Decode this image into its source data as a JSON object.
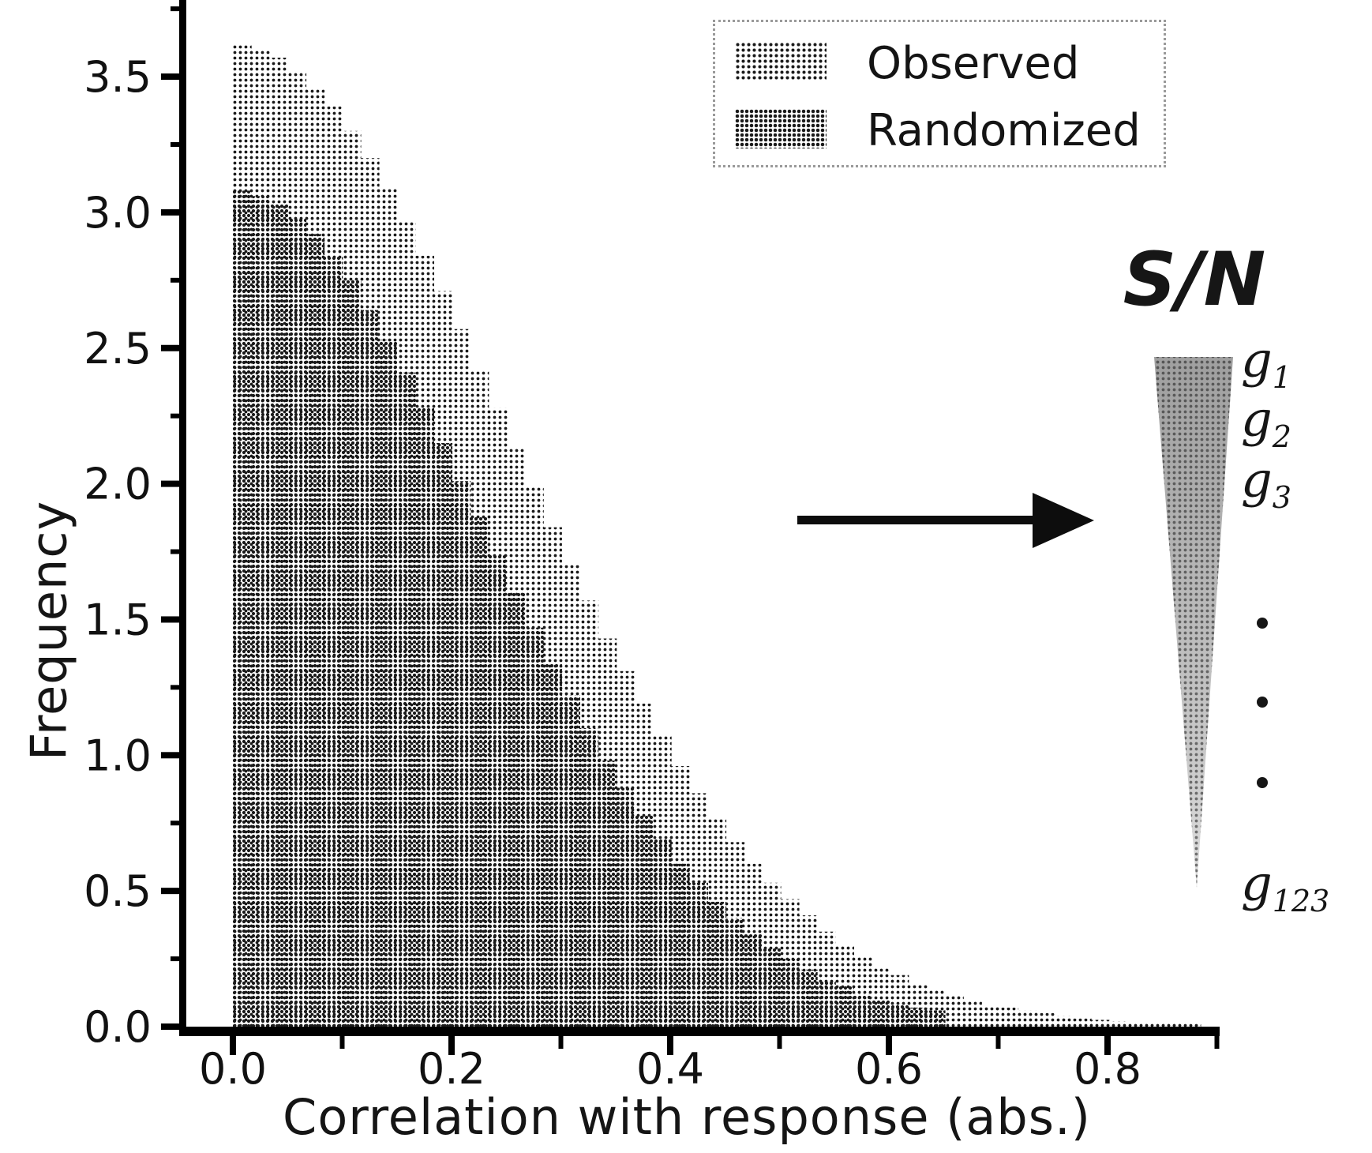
{
  "figure": {
    "background": "#ffffff",
    "description": "Histogram of gene correlations with response, observed vs randomized, with S/N-ranked gene list annotation"
  },
  "legend": {
    "items": [
      {
        "label": "Observed",
        "swatch": "halftone-light"
      },
      {
        "label": "Randomized",
        "swatch": "halftone-dense"
      }
    ]
  },
  "axes": {
    "x": {
      "title": "Correlation with response (abs.)",
      "tick_labels": [
        "0.0",
        "0.2",
        "0.4",
        "0.6",
        "0.8"
      ],
      "minor_ticks": [
        0.1,
        0.3,
        0.5,
        0.7,
        0.9
      ],
      "range": [
        -0.045,
        0.905
      ]
    },
    "y": {
      "title": "Frequency",
      "tick_labels": [
        "0.0",
        "0.5",
        "1.0",
        "1.5",
        "2.0",
        "2.5",
        "3.0",
        "3.5"
      ],
      "range": [
        0,
        3.79
      ]
    }
  },
  "annotation": {
    "sn_label": "S/N",
    "gene_labels": [
      {
        "base": "g",
        "sub": "1"
      },
      {
        "base": "g",
        "sub": "2"
      },
      {
        "base": "g",
        "sub": "3"
      },
      {
        "base": "g",
        "sub": "123"
      }
    ],
    "ellipsis_dots": 3,
    "arrow": "left-to-right"
  },
  "colors": {
    "ink": "#111111",
    "axis": "#000000",
    "halftone_dot": "#1a1a1a",
    "triangle_top": "#9f9f9f",
    "triangle_bottom": "#dedede"
  },
  "chart_data": {
    "type": "bar",
    "subtype": "histogram-overlaid",
    "title": "",
    "xlabel": "Correlation with response (abs.)",
    "ylabel": "Frequency",
    "xlim": [
      -0.045,
      0.905
    ],
    "ylim": [
      0,
      3.79
    ],
    "grid": false,
    "legend_position": "upper right",
    "bin_start": 0,
    "bin_width": 0.0167,
    "series": [
      {
        "name": "Observed",
        "pattern": "halftone-light",
        "values": [
          3.62,
          3.6,
          3.57,
          3.52,
          3.46,
          3.39,
          3.3,
          3.2,
          3.09,
          2.97,
          2.84,
          2.71,
          2.57,
          2.42,
          2.28,
          2.13,
          1.99,
          1.84,
          1.7,
          1.57,
          1.43,
          1.31,
          1.19,
          1.07,
          0.96,
          0.86,
          0.77,
          0.68,
          0.6,
          0.53,
          0.47,
          0.41,
          0.35,
          0.3,
          0.26,
          0.22,
          0.19,
          0.16,
          0.14,
          0.12,
          0.1,
          0.08,
          0.07,
          0.06,
          0.05,
          0.04,
          0.03,
          0.025,
          0.02,
          0.017,
          0.014,
          0.012,
          0.01
        ]
      },
      {
        "name": "Randomized",
        "pattern": "halftone-dense",
        "values": [
          3.08,
          3.06,
          3.03,
          2.98,
          2.92,
          2.84,
          2.75,
          2.64,
          2.53,
          2.41,
          2.28,
          2.15,
          2.01,
          1.88,
          1.74,
          1.6,
          1.47,
          1.34,
          1.22,
          1.1,
          0.98,
          0.88,
          0.78,
          0.69,
          0.6,
          0.53,
          0.46,
          0.4,
          0.34,
          0.29,
          0.25,
          0.21,
          0.17,
          0.15,
          0.12,
          0.1,
          0.08,
          0.07,
          0.06
        ]
      }
    ]
  }
}
